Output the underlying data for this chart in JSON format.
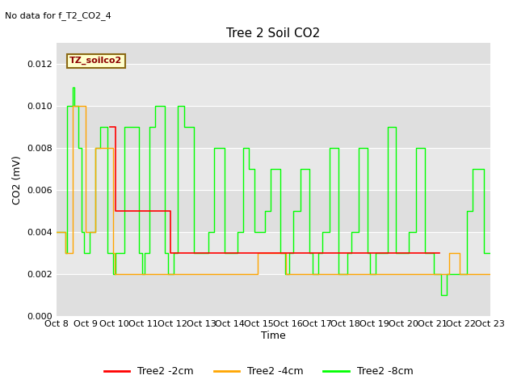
{
  "title": "Tree 2 Soil CO2",
  "no_data_text": "No data for f_T2_CO2_4",
  "ylabel": "CO2 (mV)",
  "xlabel": "Time",
  "legend_box_label": "TZ_soilco2",
  "ylim": [
    0.0,
    0.013
  ],
  "yticks": [
    0.0,
    0.002,
    0.004,
    0.006,
    0.008,
    0.01,
    0.012
  ],
  "xtick_labels": [
    "Oct 8",
    "Oct 9",
    "Oct 10",
    "Oct 11",
    "Oct 12",
    "Oct 13",
    "Oct 14",
    "Oct 15",
    "Oct 16",
    "Oct 17",
    "Oct 18",
    "Oct 19",
    "Oct 20",
    "Oct 21",
    "Oct 22",
    "Oct 23"
  ],
  "bg_color": "#e8e8e8",
  "fig_color": "#ffffff",
  "line_color_2cm": "#ff0000",
  "line_color_4cm": "#ffa500",
  "line_color_8cm": "#00ff00",
  "legend_entries": [
    "Tree2 -2cm",
    "Tree2 -4cm",
    "Tree2 -8cm"
  ],
  "green_x": [
    8.0,
    8.3,
    8.35,
    8.55,
    8.6,
    8.65,
    8.75,
    8.85,
    8.95,
    9.0,
    9.05,
    9.15,
    9.35,
    9.5,
    9.6,
    9.65,
    9.75,
    9.85,
    9.95,
    10.0,
    10.05,
    10.15,
    10.35,
    10.55,
    10.75,
    10.85,
    10.95,
    11.0,
    11.05,
    11.2,
    11.4,
    11.55,
    11.75,
    11.85,
    11.95,
    12.0,
    12.05,
    12.2,
    12.4,
    12.6,
    12.75,
    12.85,
    12.95,
    13.0,
    13.05,
    13.25,
    13.45,
    13.65,
    13.8,
    13.95,
    14.0,
    14.05,
    14.25,
    14.45,
    14.65,
    14.75,
    14.85,
    14.95,
    15.0,
    15.05,
    15.2,
    15.4,
    15.6,
    15.75,
    15.9,
    15.95,
    16.0,
    16.05,
    16.2,
    16.45,
    16.6,
    16.75,
    16.85,
    16.95,
    17.0,
    17.05,
    17.2,
    17.45,
    17.6,
    17.75,
    17.85,
    17.95,
    18.0,
    18.05,
    18.2,
    18.45,
    18.6,
    18.75,
    18.85,
    18.95,
    19.0,
    19.05,
    19.2,
    19.45,
    19.6,
    19.75,
    19.85,
    19.95,
    20.0,
    20.05,
    20.2,
    20.45,
    20.6,
    20.75,
    20.85,
    20.95,
    21.0,
    21.05,
    21.1,
    21.15,
    21.2,
    21.25,
    21.3,
    21.4,
    21.5,
    21.6,
    21.7,
    21.75,
    21.85,
    21.95,
    22.0,
    22.05,
    22.2,
    22.4,
    22.6,
    22.7,
    22.8,
    22.9,
    23.0
  ],
  "green_y": [
    0.004,
    0.003,
    0.01,
    0.0109,
    0.01,
    0.01,
    0.008,
    0.004,
    0.003,
    0.003,
    0.003,
    0.004,
    0.008,
    0.009,
    0.009,
    0.009,
    0.003,
    0.003,
    0.002,
    0.002,
    0.003,
    0.003,
    0.009,
    0.009,
    0.009,
    0.003,
    0.002,
    0.002,
    0.003,
    0.009,
    0.01,
    0.01,
    0.003,
    0.002,
    0.002,
    0.002,
    0.003,
    0.01,
    0.009,
    0.009,
    0.003,
    0.003,
    0.003,
    0.003,
    0.003,
    0.004,
    0.008,
    0.008,
    0.003,
    0.003,
    0.003,
    0.003,
    0.004,
    0.008,
    0.007,
    0.007,
    0.004,
    0.004,
    0.004,
    0.004,
    0.005,
    0.007,
    0.007,
    0.003,
    0.002,
    0.002,
    0.002,
    0.003,
    0.005,
    0.007,
    0.007,
    0.003,
    0.002,
    0.002,
    0.002,
    0.003,
    0.004,
    0.008,
    0.008,
    0.002,
    0.002,
    0.002,
    0.002,
    0.003,
    0.004,
    0.008,
    0.008,
    0.003,
    0.002,
    0.002,
    0.002,
    0.003,
    0.003,
    0.009,
    0.009,
    0.003,
    0.003,
    0.003,
    0.003,
    0.003,
    0.004,
    0.008,
    0.008,
    0.003,
    0.003,
    0.003,
    0.003,
    0.002,
    0.002,
    0.002,
    0.002,
    0.002,
    0.001,
    0.001,
    0.002,
    0.002,
    0.002,
    0.002,
    0.002,
    0.002,
    0.002,
    0.002,
    0.005,
    0.007,
    0.007,
    0.007,
    0.003,
    0.003,
    0.003
  ],
  "red_x": [
    9.85,
    9.9,
    9.95,
    10.0,
    10.05,
    11.85,
    11.9,
    11.95,
    12.0,
    12.05,
    21.0,
    21.05,
    21.1,
    21.15,
    21.2,
    21.25
  ],
  "red_y": [
    0.009,
    0.009,
    0.009,
    0.009,
    0.005,
    0.005,
    0.005,
    0.003,
    0.003,
    0.003,
    0.003,
    0.003,
    0.003,
    0.003,
    0.003,
    0.003
  ],
  "orange_x": [
    8.0,
    8.3,
    8.55,
    9.0,
    9.35,
    9.95,
    10.0,
    10.95,
    11.0,
    11.95,
    12.0,
    12.95,
    13.0,
    13.95,
    14.0,
    14.95,
    15.0,
    15.95,
    16.0,
    16.95,
    17.0,
    17.95,
    18.0,
    18.95,
    19.0,
    19.95,
    20.0,
    20.95,
    21.0,
    21.25,
    21.3,
    21.4,
    21.5,
    21.6,
    21.7,
    21.75,
    21.95,
    22.0,
    22.9,
    23.0
  ],
  "orange_y": [
    0.004,
    0.003,
    0.01,
    0.004,
    0.008,
    0.003,
    0.002,
    0.002,
    0.002,
    0.002,
    0.002,
    0.002,
    0.002,
    0.002,
    0.002,
    0.003,
    0.003,
    0.002,
    0.002,
    0.002,
    0.002,
    0.002,
    0.002,
    0.002,
    0.002,
    0.002,
    0.002,
    0.002,
    0.002,
    0.002,
    0.002,
    0.002,
    0.002,
    0.003,
    0.003,
    0.003,
    0.002,
    0.002,
    0.002,
    0.002
  ]
}
